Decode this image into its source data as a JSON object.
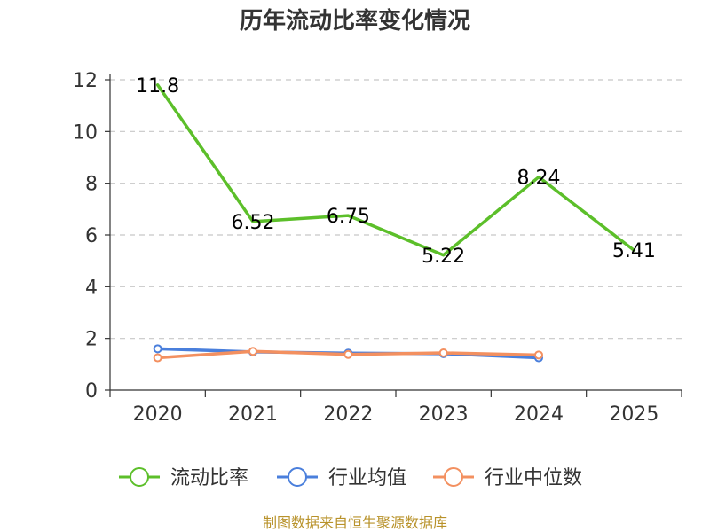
{
  "chart_data": {
    "type": "line",
    "title": "历年流动比率变化情况",
    "categories": [
      "2020",
      "2021",
      "2022",
      "2023",
      "2024",
      "2025"
    ],
    "ylim": [
      0,
      12
    ],
    "yticks": [
      0,
      2,
      4,
      6,
      8,
      10,
      12
    ],
    "grid": true,
    "legend_position": "bottom",
    "series": [
      {
        "name": "流动比率",
        "color": "#5cbf2a",
        "values": [
          11.8,
          6.52,
          6.75,
          5.22,
          8.24,
          5.41
        ],
        "labels": [
          "11.8",
          "6.52",
          "6.75",
          "5.22",
          "8.24",
          "5.41"
        ],
        "show_markers": false
      },
      {
        "name": "行业均值",
        "color": "#4a7fdc",
        "values": [
          1.6,
          1.48,
          1.43,
          1.41,
          1.25,
          null
        ],
        "show_markers": true
      },
      {
        "name": "行业中位数",
        "color": "#f39060",
        "values": [
          1.25,
          1.5,
          1.38,
          1.44,
          1.36,
          null
        ],
        "show_markers": true
      }
    ]
  },
  "footer": {
    "source": "制图数据来自恒生聚源数据库"
  }
}
